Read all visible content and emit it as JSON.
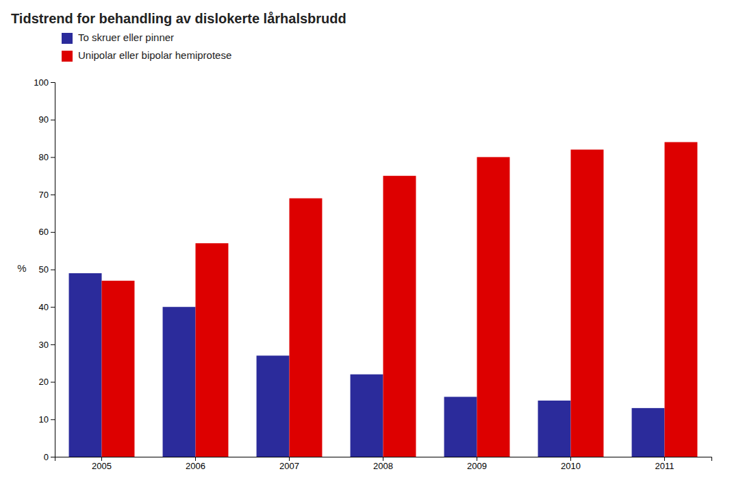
{
  "chart_data": {
    "type": "bar",
    "title": "Tidstrend for behandling av dislokerte lårhalsbrudd",
    "y_label": "%",
    "categories": [
      "2005",
      "2006",
      "2007",
      "2008",
      "2009",
      "2010",
      "2011"
    ],
    "series": [
      {
        "name": "To skruer eller pinner",
        "color": "#2B2B9B",
        "values": [
          49,
          40,
          27,
          22,
          16,
          15,
          13
        ]
      },
      {
        "name": "Unipolar eller bipolar hemiprotese",
        "color": "#DD0000",
        "values": [
          47,
          57,
          69,
          75,
          80,
          82,
          84
        ]
      }
    ],
    "ylim": [
      0,
      100
    ],
    "yticks": [
      0,
      10,
      20,
      30,
      40,
      50,
      60,
      70,
      80,
      90,
      100
    ],
    "grid": false,
    "legend": "top"
  }
}
